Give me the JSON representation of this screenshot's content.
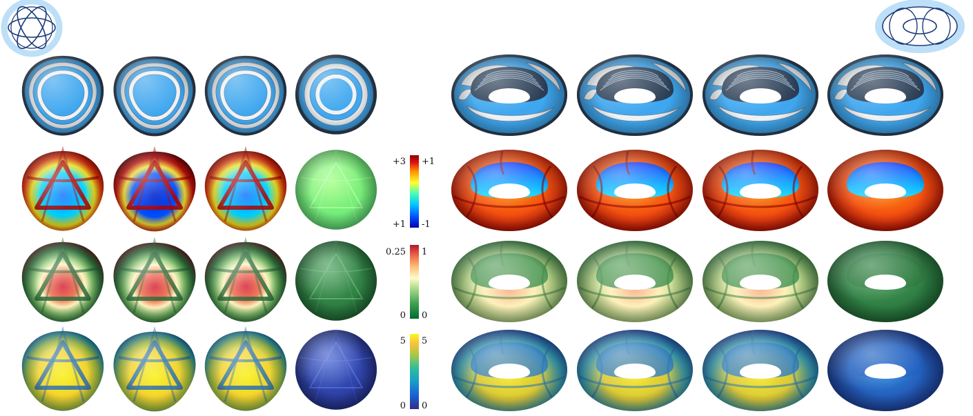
{
  "figure": {
    "colorbars": [
      {
        "id": "mean-curvature",
        "left_top": "+3",
        "left_bottom": "+1",
        "right_top": "+1",
        "right_bottom": "-1",
        "colors": [
          "#0000b0",
          "#0050ff",
          "#00c8ff",
          "#50ffb0",
          "#ffff30",
          "#ff9000",
          "#e01010",
          "#8c0000"
        ]
      },
      {
        "id": "distortion",
        "left_top": "0.25",
        "left_bottom": "0",
        "right_top": "1",
        "right_bottom": "0",
        "colors": [
          "#006b30",
          "#3c9e50",
          "#a6d888",
          "#fffcc8",
          "#fdc07a",
          "#ef6a4a",
          "#b2182b"
        ]
      },
      {
        "id": "magnitude",
        "left_top": "5",
        "left_bottom": "0",
        "right_top": "5",
        "right_bottom": "0",
        "colors": [
          "#352a87",
          "#1a5fd6",
          "#1aa0c8",
          "#2fbf9a",
          "#a8c845",
          "#fcc23a",
          "#f9f919"
        ]
      }
    ],
    "rows": [
      {
        "name": "isolines",
        "sphere_variants": [
          "a",
          "b",
          "c",
          "d"
        ],
        "torus_variants": [
          "a",
          "b",
          "c",
          "d"
        ]
      },
      {
        "name": "mean-curvature",
        "sphere_variants": [
          "a",
          "b",
          "c",
          "d"
        ],
        "torus_variants": [
          "a",
          "b",
          "c",
          "d"
        ]
      },
      {
        "name": "distortion",
        "sphere_variants": [
          "a",
          "b",
          "c",
          "d"
        ],
        "torus_variants": [
          "a",
          "b",
          "c",
          "d"
        ]
      },
      {
        "name": "magnitude",
        "sphere_variants": [
          "a",
          "b",
          "c",
          "d"
        ],
        "torus_variants": [
          "a",
          "b",
          "c",
          "d"
        ]
      }
    ],
    "palette": {
      "iso_blue": "#3fa7ef",
      "iso_white": "#eef2f5",
      "iso_dark": "#32465e",
      "red": "#8c0000",
      "green_dark": "#2c7a40",
      "yellow": "#f7f21c",
      "navy": "#2a3d9c"
    },
    "corner_icons": [
      "sphere-curve-network-icon",
      "torus-curve-network-icon"
    ]
  }
}
